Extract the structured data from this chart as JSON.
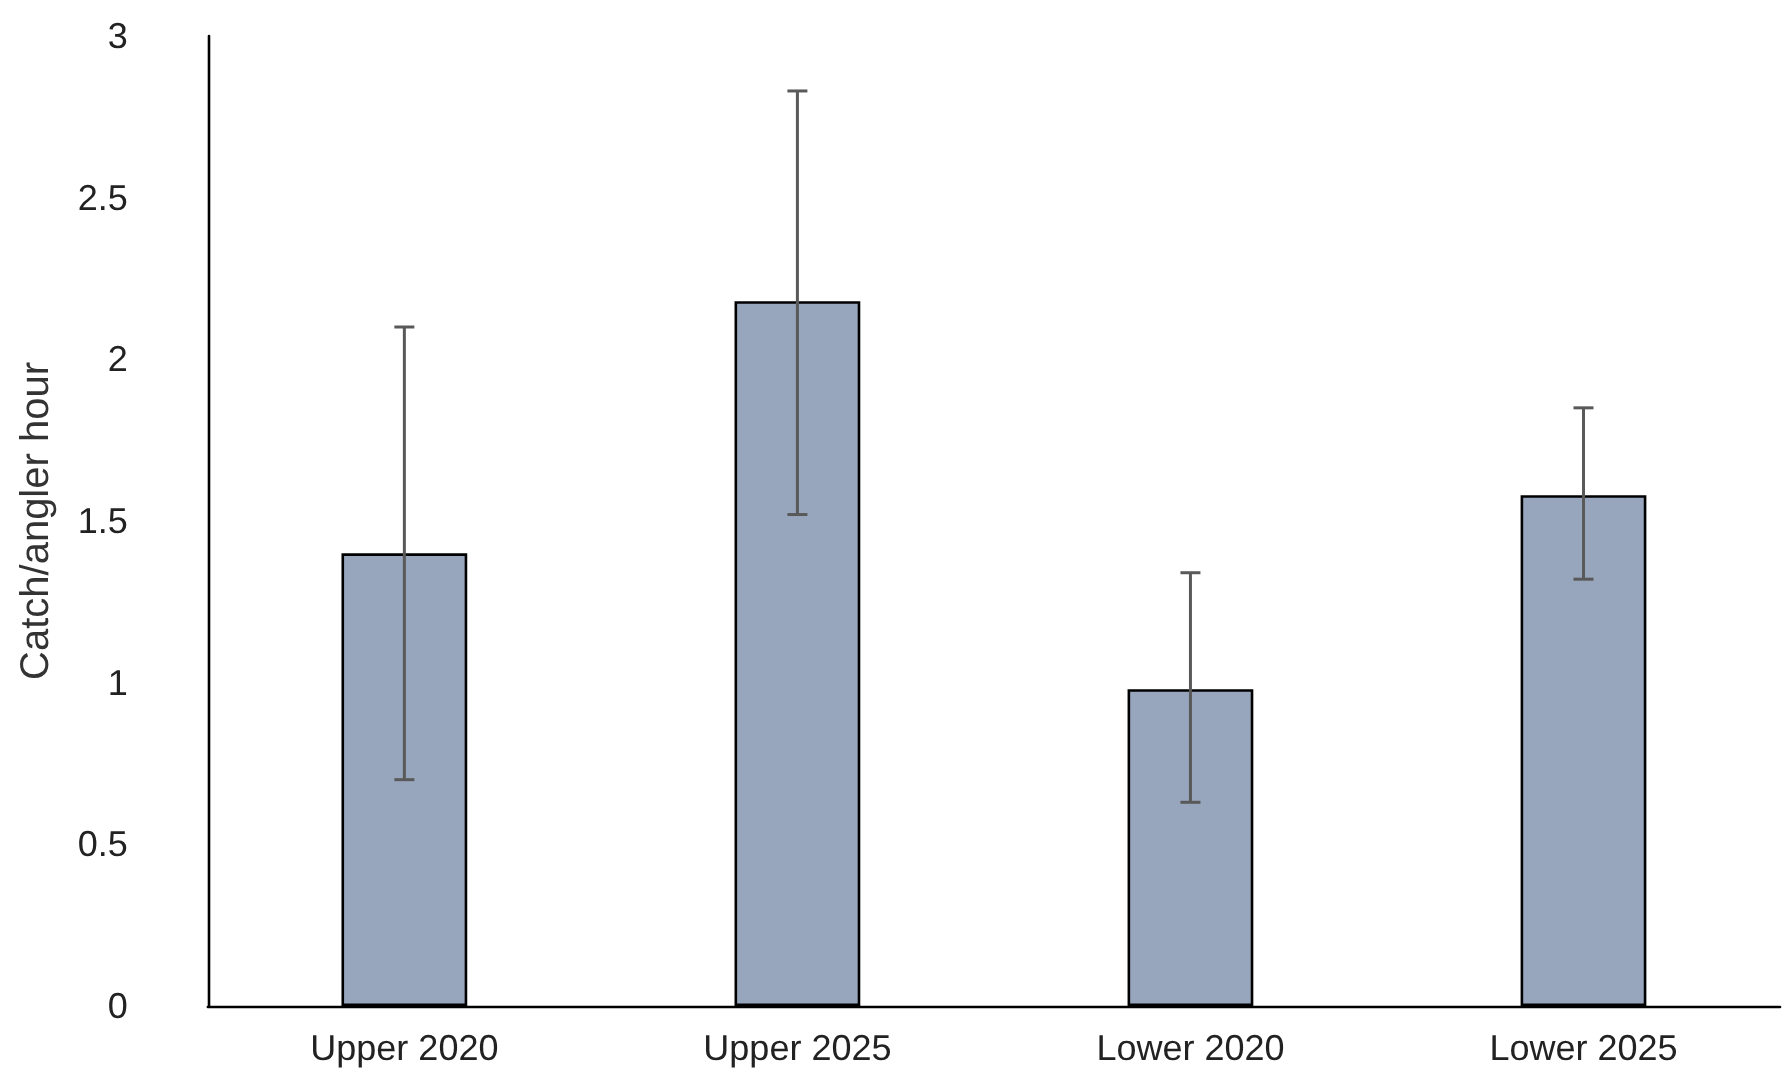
{
  "chart_data": {
    "type": "bar",
    "ylabel": "Catch/angler hour",
    "categories": [
      "Upper 2020",
      "Upper 2025",
      "Lower 2020",
      "Lower 2025"
    ],
    "values": [
      1.4,
      2.18,
      0.98,
      1.58
    ],
    "errors": [
      [
        0.7,
        2.1
      ],
      [
        1.52,
        2.83
      ],
      [
        0.63,
        1.34
      ],
      [
        1.32,
        1.85
      ]
    ],
    "color": "#97a6bc",
    "ylim": [
      0,
      3
    ],
    "yticks": [
      0,
      0.5,
      1,
      1.5,
      2,
      2.5,
      3
    ],
    "grid": false
  }
}
